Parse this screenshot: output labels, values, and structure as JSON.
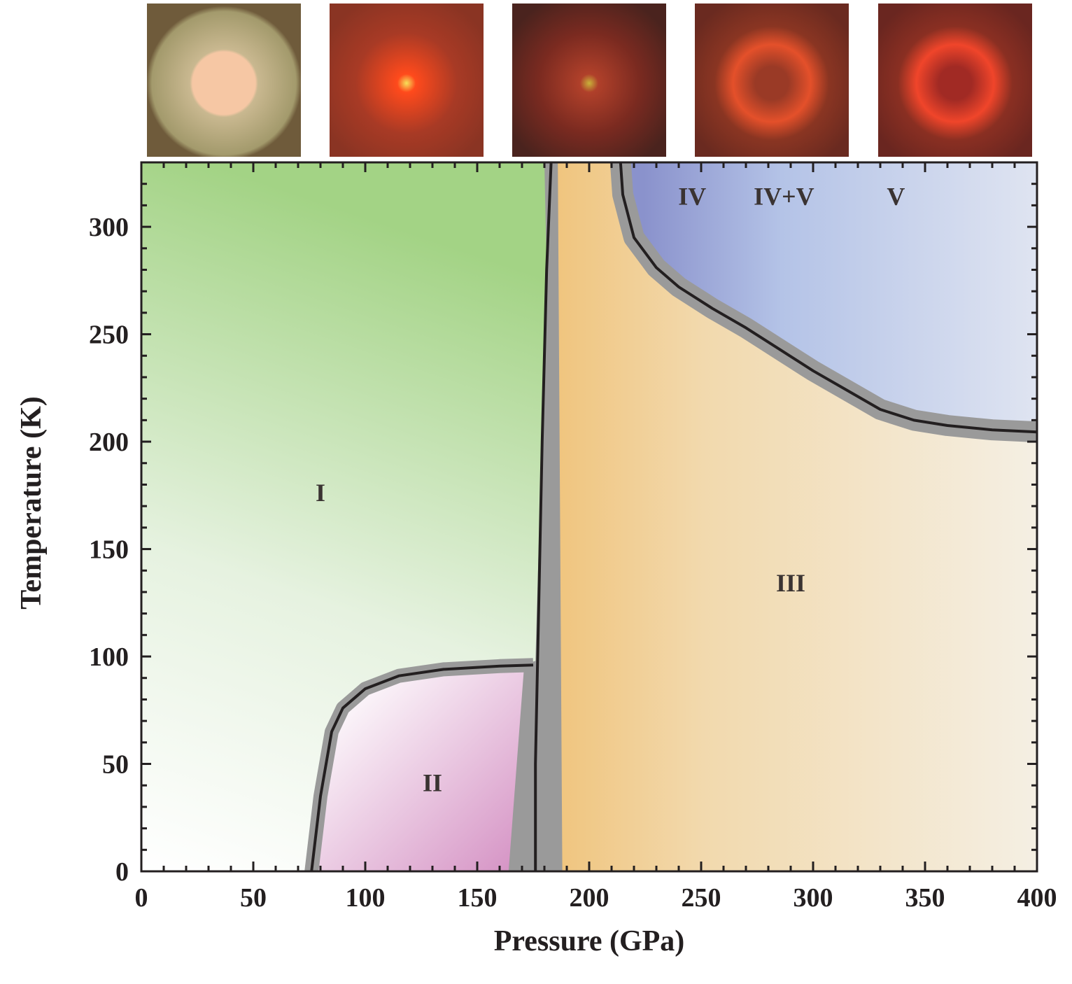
{
  "photos": [
    {
      "name": "phase-I-photo",
      "colors": [
        "#f6c7a4",
        "#c9b890",
        "#a39a6c",
        "#6f5b3b"
      ]
    },
    {
      "name": "phase-II-photo",
      "colors": [
        "#f6e15a",
        "#ff4a1c",
        "#a83a25",
        "#8a3423"
      ]
    },
    {
      "name": "phase-III-photo",
      "colors": [
        "#c9b23a",
        "#b0402a",
        "#7a2a20",
        "#4a231e"
      ]
    },
    {
      "name": "phase-IV-photo",
      "colors": [
        "#9a3a26",
        "#e4502a",
        "#8a3522",
        "#6a2a20"
      ]
    },
    {
      "name": "phase-V-photo",
      "colors": [
        "#a12a24",
        "#f0452a",
        "#8a2f22",
        "#6a2620"
      ]
    }
  ],
  "chart_data": {
    "type": "area",
    "title": "",
    "xlabel": "Pressure (GPa)",
    "ylabel": "Temperature (K)",
    "xlim": [
      0,
      400
    ],
    "ylim": [
      0,
      330
    ],
    "xticks": [
      0,
      50,
      100,
      150,
      200,
      250,
      300,
      350,
      400
    ],
    "yticks": [
      0,
      50,
      100,
      150,
      200,
      250,
      300
    ],
    "grid": false,
    "regions": [
      {
        "name": "I",
        "label_at": [
          80,
          175
        ],
        "color": "#a3d385"
      },
      {
        "name": "II",
        "label_at": [
          130,
          40
        ],
        "color": "#d99bc9"
      },
      {
        "name": "III",
        "label_at": [
          290,
          133
        ],
        "color": "#f2c987"
      },
      {
        "name": "IV",
        "label_at": [
          246,
          313
        ],
        "color": "#8a94cd"
      },
      {
        "name": "IV+V",
        "label_at": [
          287,
          313
        ],
        "color": "#b7c5e8"
      },
      {
        "name": "V",
        "label_at": [
          337,
          313
        ],
        "color": "#dde3f1"
      }
    ],
    "boundaries": [
      {
        "name": "I-II boundary",
        "points": [
          [
            76,
            0
          ],
          [
            80,
            35
          ],
          [
            85,
            65
          ],
          [
            90,
            76
          ],
          [
            100,
            85
          ],
          [
            115,
            91
          ],
          [
            135,
            94
          ],
          [
            160,
            95.5
          ],
          [
            175,
            96
          ]
        ]
      },
      {
        "name": "II/I-III boundary",
        "points": [
          [
            176,
            0
          ],
          [
            176,
            50
          ],
          [
            177,
            100
          ],
          [
            179,
            200
          ],
          [
            181,
            280
          ],
          [
            183,
            330
          ]
        ]
      },
      {
        "name": "III-IV boundary",
        "points": [
          [
            214,
            330
          ],
          [
            215,
            315
          ],
          [
            220,
            295
          ],
          [
            230,
            281
          ],
          [
            240,
            272
          ],
          [
            255,
            262
          ],
          [
            270,
            253
          ],
          [
            285,
            243
          ],
          [
            300,
            233
          ],
          [
            315,
            224
          ],
          [
            330,
            215
          ],
          [
            345,
            210
          ],
          [
            360,
            207.5
          ],
          [
            380,
            205.5
          ],
          [
            400,
            204.5
          ]
        ]
      }
    ]
  }
}
